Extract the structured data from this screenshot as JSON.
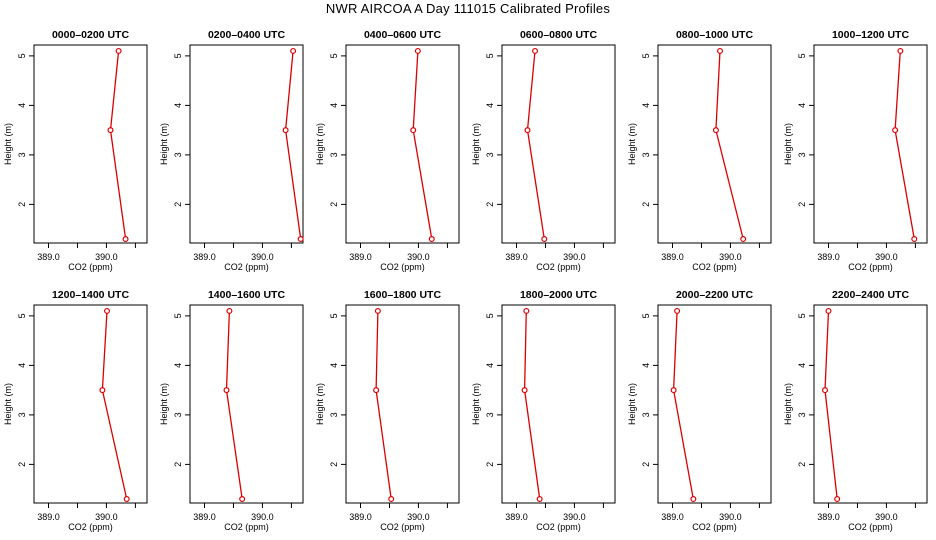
{
  "title": "NWR AIRCOA A  Day 111015  Calibrated Profiles",
  "colors": {
    "series": "#dd0000",
    "axis": "#000000"
  },
  "chart_data": [
    {
      "type": "line",
      "title": "0000–0200 UTC",
      "xlabel": "CO2 (ppm)",
      "ylabel": "Height (m)",
      "x_ticks": [
        389.0,
        390.0
      ],
      "y_ticks": [
        2,
        3,
        4,
        5
      ],
      "xlim": [
        388.75,
        390.7
      ],
      "ylim": [
        1.22,
        5.22
      ],
      "series": [
        {
          "x": [
            390.33,
            390.07,
            390.21
          ],
          "y": [
            1.3,
            3.5,
            5.1
          ]
        }
      ]
    },
    {
      "type": "line",
      "title": "0200–0400 UTC",
      "xlabel": "CO2 (ppm)",
      "ylabel": "Height (m)",
      "x_ticks": [
        389.0,
        390.0
      ],
      "y_ticks": [
        2,
        3,
        4,
        5
      ],
      "xlim": [
        388.75,
        390.7
      ],
      "ylim": [
        1.22,
        5.22
      ],
      "series": [
        {
          "x": [
            390.66,
            390.4,
            390.53
          ],
          "y": [
            1.3,
            3.5,
            5.1
          ]
        }
      ]
    },
    {
      "type": "line",
      "title": "0400–0600 UTC",
      "xlabel": "CO2 (ppm)",
      "ylabel": "Height (m)",
      "x_ticks": [
        389.0,
        390.0
      ],
      "y_ticks": [
        2,
        3,
        4,
        5
      ],
      "xlim": [
        388.75,
        390.7
      ],
      "ylim": [
        1.22,
        5.22
      ],
      "series": [
        {
          "x": [
            390.23,
            389.91,
            389.99
          ],
          "y": [
            1.3,
            3.5,
            5.1
          ]
        }
      ]
    },
    {
      "type": "line",
      "title": "0600–0800 UTC",
      "xlabel": "CO2 (ppm)",
      "ylabel": "Height (m)",
      "x_ticks": [
        389.0,
        390.0
      ],
      "y_ticks": [
        2,
        3,
        4,
        5
      ],
      "xlim": [
        388.75,
        390.7
      ],
      "ylim": [
        1.22,
        5.22
      ],
      "series": [
        {
          "x": [
            389.48,
            389.19,
            389.32
          ],
          "y": [
            1.3,
            3.5,
            5.1
          ]
        }
      ]
    },
    {
      "type": "line",
      "title": "0800–1000 UTC",
      "xlabel": "CO2 (ppm)",
      "ylabel": "Height (m)",
      "x_ticks": [
        389.0,
        390.0
      ],
      "y_ticks": [
        2,
        3,
        4,
        5
      ],
      "xlim": [
        388.75,
        390.7
      ],
      "ylim": [
        1.22,
        5.22
      ],
      "series": [
        {
          "x": [
            390.22,
            389.75,
            389.82
          ],
          "y": [
            1.3,
            3.5,
            5.1
          ]
        }
      ]
    },
    {
      "type": "line",
      "title": "1000–1200 UTC",
      "xlabel": "CO2 (ppm)",
      "ylabel": "Height (m)",
      "x_ticks": [
        389.0,
        390.0
      ],
      "y_ticks": [
        2,
        3,
        4,
        5
      ],
      "xlim": [
        388.75,
        390.7
      ],
      "ylim": [
        1.22,
        5.22
      ],
      "series": [
        {
          "x": [
            390.48,
            390.15,
            390.24
          ],
          "y": [
            1.3,
            3.5,
            5.1
          ]
        }
      ]
    },
    {
      "type": "line",
      "title": "1200–1400 UTC",
      "xlabel": "CO2 (ppm)",
      "ylabel": "Height (m)",
      "x_ticks": [
        389.0,
        390.0
      ],
      "y_ticks": [
        2,
        3,
        4,
        5
      ],
      "xlim": [
        388.75,
        390.7
      ],
      "ylim": [
        1.22,
        5.22
      ],
      "series": [
        {
          "x": [
            390.35,
            389.93,
            390.01
          ],
          "y": [
            1.3,
            3.5,
            5.1
          ]
        }
      ]
    },
    {
      "type": "line",
      "title": "1400–1600 UTC",
      "xlabel": "CO2 (ppm)",
      "ylabel": "Height (m)",
      "x_ticks": [
        389.0,
        390.0
      ],
      "y_ticks": [
        2,
        3,
        4,
        5
      ],
      "xlim": [
        388.75,
        390.7
      ],
      "ylim": [
        1.22,
        5.22
      ],
      "series": [
        {
          "x": [
            389.65,
            389.38,
            389.43
          ],
          "y": [
            1.3,
            3.5,
            5.1
          ]
        }
      ]
    },
    {
      "type": "line",
      "title": "1600–1800 UTC",
      "xlabel": "CO2 (ppm)",
      "ylabel": "Height (m)",
      "x_ticks": [
        389.0,
        390.0
      ],
      "y_ticks": [
        2,
        3,
        4,
        5
      ],
      "xlim": [
        388.75,
        390.7
      ],
      "ylim": [
        1.22,
        5.22
      ],
      "series": [
        {
          "x": [
            389.53,
            389.27,
            389.3
          ],
          "y": [
            1.3,
            3.5,
            5.1
          ]
        }
      ]
    },
    {
      "type": "line",
      "title": "1800–2000 UTC",
      "xlabel": "CO2 (ppm)",
      "ylabel": "Height (m)",
      "x_ticks": [
        389.0,
        390.0
      ],
      "y_ticks": [
        2,
        3,
        4,
        5
      ],
      "xlim": [
        388.75,
        390.7
      ],
      "ylim": [
        1.22,
        5.22
      ],
      "series": [
        {
          "x": [
            389.4,
            389.14,
            389.17
          ],
          "y": [
            1.3,
            3.5,
            5.1
          ]
        }
      ]
    },
    {
      "type": "line",
      "title": "2000–2200 UTC",
      "xlabel": "CO2 (ppm)",
      "ylabel": "Height (m)",
      "x_ticks": [
        389.0,
        390.0
      ],
      "y_ticks": [
        2,
        3,
        4,
        5
      ],
      "xlim": [
        388.75,
        390.7
      ],
      "ylim": [
        1.22,
        5.22
      ],
      "series": [
        {
          "x": [
            389.36,
            389.02,
            389.08
          ],
          "y": [
            1.3,
            3.5,
            5.1
          ]
        }
      ]
    },
    {
      "type": "line",
      "title": "2200–2400 UTC",
      "xlabel": "CO2 (ppm)",
      "ylabel": "Height (m)",
      "x_ticks": [
        389.0,
        390.0
      ],
      "y_ticks": [
        2,
        3,
        4,
        5
      ],
      "xlim": [
        388.75,
        390.7
      ],
      "ylim": [
        1.22,
        5.22
      ],
      "series": [
        {
          "x": [
            389.15,
            388.94,
            389.0
          ],
          "y": [
            1.3,
            3.5,
            5.1
          ]
        }
      ]
    }
  ]
}
